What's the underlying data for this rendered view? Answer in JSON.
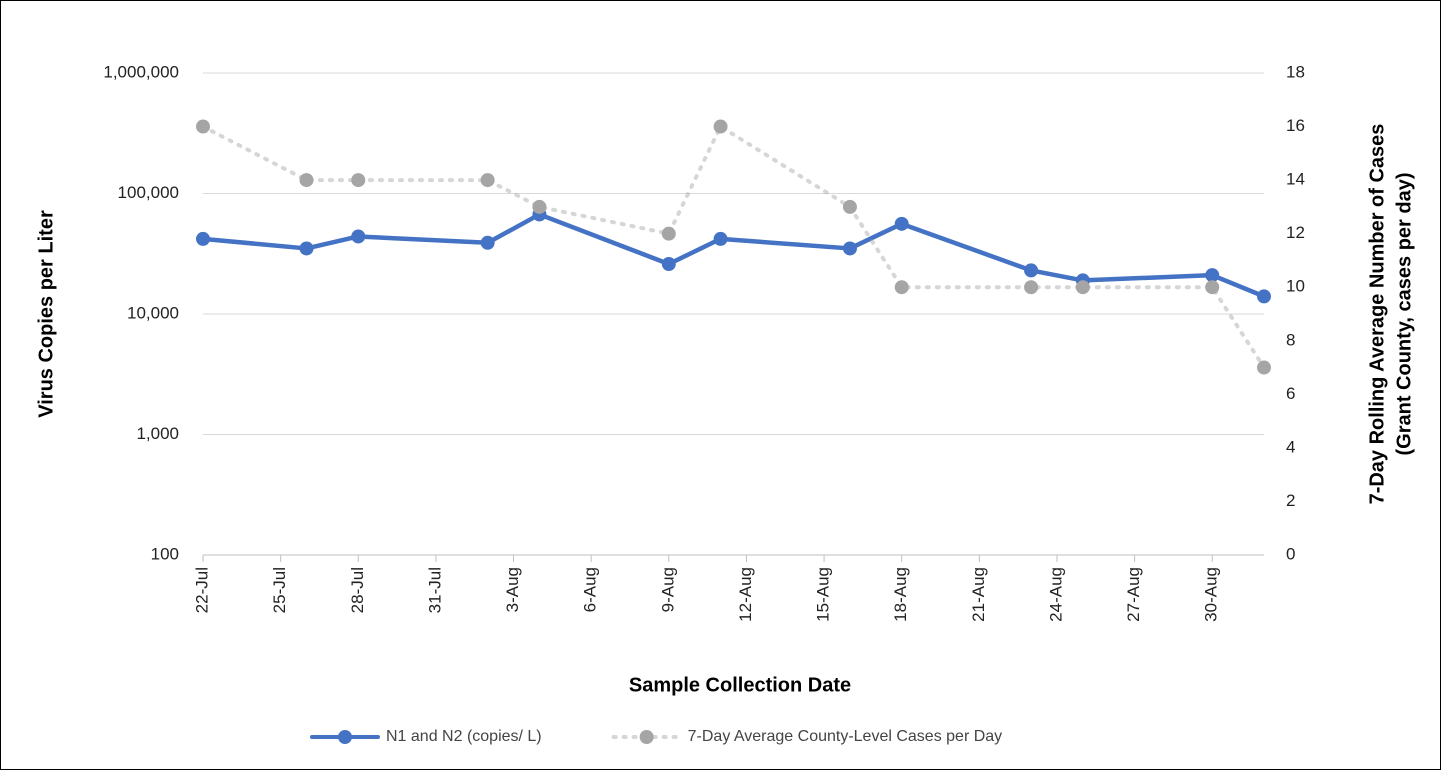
{
  "chart_data": {
    "type": "line",
    "xlabel": "Sample Collection Date",
    "ylabel": "Virus Copies per Liter",
    "y2label": [
      "7-Day Rolling Average Number of Cases",
      "(Grant County, cases per day)"
    ],
    "x": [
      "22-Jul",
      "26-Jul",
      "28-Jul",
      "2-Aug",
      "4-Aug",
      "9-Aug",
      "11-Aug",
      "16-Aug",
      "18-Aug",
      "23-Aug",
      "25-Aug",
      "30-Aug",
      "1-Sep"
    ],
    "xlim": [
      "22-Jul",
      "1-Sep"
    ],
    "xticks": [
      "22-Jul",
      "25-Jul",
      "28-Jul",
      "31-Jul",
      "3-Aug",
      "6-Aug",
      "9-Aug",
      "12-Aug",
      "15-Aug",
      "18-Aug",
      "21-Aug",
      "24-Aug",
      "27-Aug",
      "30-Aug"
    ],
    "ylog": true,
    "ylim": [
      100,
      1000000
    ],
    "yticks": [
      100,
      {
        "value": 1000,
        "label": "1,000"
      },
      {
        "value": 10000,
        "label": "10,000"
      },
      {
        "value": 100000,
        "label": "100,000"
      },
      {
        "value": 1000000,
        "label": "1,000,000"
      }
    ],
    "y2lim": [
      0,
      18
    ],
    "y2ticks": [
      0,
      2,
      4,
      6,
      8,
      10,
      12,
      14,
      16,
      18
    ],
    "grid": true,
    "legend": "bottom",
    "series": [
      {
        "name": "N1 and N2 (copies/ L)",
        "color": "#4472c4",
        "style": "solid",
        "values": [
          42000,
          35000,
          44000,
          39000,
          67000,
          26000,
          42000,
          35000,
          56000,
          23000,
          19000,
          21000,
          14000
        ]
      },
      {
        "name": "7-Day Average County-Level Cases per Day",
        "color": "#a5a5a5",
        "style": "dotted",
        "axis": "y2",
        "values": [
          16,
          14,
          14,
          14,
          13,
          12,
          16,
          13,
          10,
          10,
          10,
          10,
          7
        ]
      }
    ]
  }
}
